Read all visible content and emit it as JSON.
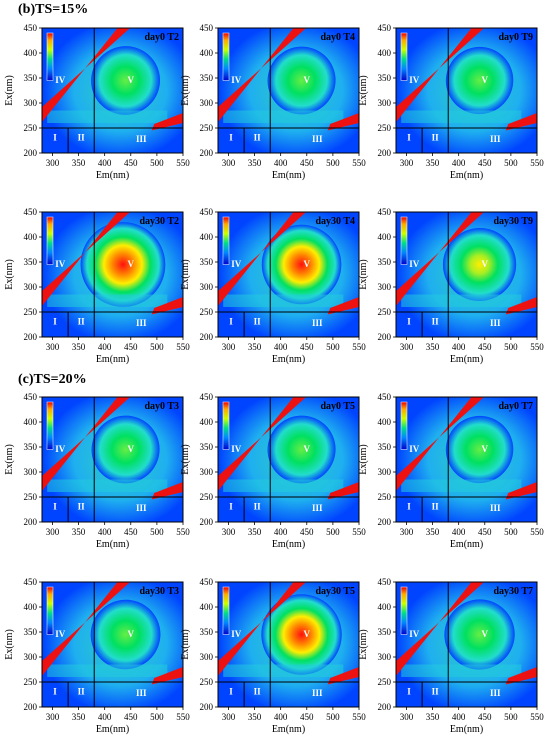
{
  "sections": [
    {
      "title": "(b)TS=15%",
      "panels": [
        {
          "label": "day0 T2",
          "intensity": 0.45,
          "peak": [
            440,
            345
          ]
        },
        {
          "label": "day0 T4",
          "intensity": 0.42,
          "peak": [
            440,
            345
          ]
        },
        {
          "label": "day0 T9",
          "intensity": 0.4,
          "peak": [
            440,
            345
          ]
        },
        {
          "label": "day30 T2",
          "intensity": 1.0,
          "peak": [
            435,
            345
          ]
        },
        {
          "label": "day30 T4",
          "intensity": 0.82,
          "peak": [
            440,
            345
          ]
        },
        {
          "label": "day30 T9",
          "intensity": 0.6,
          "peak": [
            440,
            345
          ]
        }
      ]
    },
    {
      "title": "(c)TS=20%",
      "panels": [
        {
          "label": "day0 T3",
          "intensity": 0.42,
          "peak": [
            440,
            345
          ]
        },
        {
          "label": "day0 T5",
          "intensity": 0.42,
          "peak": [
            440,
            345
          ]
        },
        {
          "label": "day0 T7",
          "intensity": 0.4,
          "peak": [
            440,
            345
          ]
        },
        {
          "label": "day30 T3",
          "intensity": 0.48,
          "peak": [
            440,
            345
          ]
        },
        {
          "label": "day30 T5",
          "intensity": 0.85,
          "peak": [
            440,
            345
          ]
        },
        {
          "label": "day30 T7",
          "intensity": 0.5,
          "peak": [
            440,
            345
          ]
        }
      ]
    }
  ],
  "chart_data": {
    "type": "heatmap",
    "xlabel": "Em(nm)",
    "ylabel": "Ex(nm)",
    "xlim": [
      280,
      550
    ],
    "ylim": [
      200,
      450
    ],
    "xticks": [
      300,
      350,
      400,
      450,
      500,
      550
    ],
    "yticks": [
      200,
      250,
      300,
      350,
      400,
      450
    ],
    "regions": [
      "I",
      "II",
      "III",
      "IV",
      "V"
    ],
    "region_boundaries": {
      "em": [
        330,
        380
      ],
      "ex": 250
    },
    "colors": {
      "low": "#0044ff",
      "mid": "#00e060",
      "high": "#ff1010",
      "scatter": "#ee1111"
    }
  }
}
